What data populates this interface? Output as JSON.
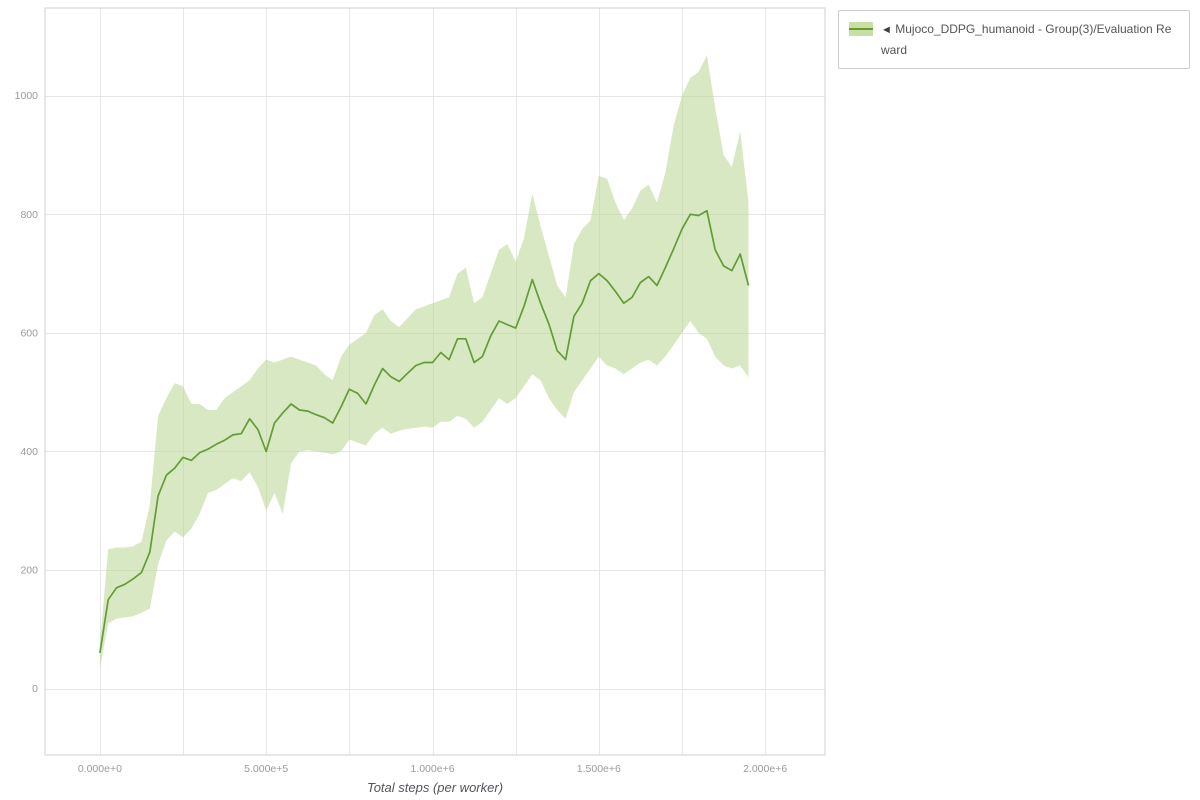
{
  "colors": {
    "line": "#639c36",
    "band": "#b8d690",
    "band_legend": "#c9dfa4",
    "grid": "#e7e7e7",
    "frame": "#d2d2d2",
    "tick_label": "#9b9b9b",
    "axis_label": "#54555e"
  },
  "legend": {
    "collapse_icon": "◄",
    "label": "Mujoco_DDPG_humanoid - Group(3)/Evaluation Reward"
  },
  "chart_data": {
    "type": "line",
    "title": "",
    "xlabel": "Total steps (per worker)",
    "ylabel": "",
    "xlim": [
      -165000,
      2180000
    ],
    "ylim": [
      -112,
      1148
    ],
    "grid": true,
    "legend_position": "top-right-outside",
    "x_minor_grid_step": 250000,
    "x_grid_max": 2000000,
    "x_ticks": [
      {
        "value": 0,
        "label": "0.000e+0"
      },
      {
        "value": 500000,
        "label": "5.000e+5"
      },
      {
        "value": 1000000,
        "label": "1.000e+6"
      },
      {
        "value": 1500000,
        "label": "1.500e+6"
      },
      {
        "value": 2000000,
        "label": "2.000e+6"
      }
    ],
    "y_ticks": [
      {
        "value": 0,
        "label": "0"
      },
      {
        "value": 200,
        "label": "200"
      },
      {
        "value": 400,
        "label": "400"
      },
      {
        "value": 600,
        "label": "600"
      },
      {
        "value": 800,
        "label": "800"
      },
      {
        "value": 1000,
        "label": "1000"
      }
    ],
    "series": [
      {
        "name": "Mujoco_DDPG_humanoid - Group(3)/Evaluation Reward",
        "band_opacity": 0.55,
        "x": [
          0,
          25000,
          50000,
          75000,
          100000,
          125000,
          150000,
          175000,
          200000,
          225000,
          250000,
          275000,
          300000,
          325000,
          350000,
          375000,
          400000,
          425000,
          450000,
          475000,
          500000,
          525000,
          550000,
          575000,
          600000,
          625000,
          650000,
          675000,
          700000,
          725000,
          750000,
          775000,
          800000,
          825000,
          850000,
          875000,
          900000,
          925000,
          950000,
          975000,
          1000000,
          1025000,
          1050000,
          1075000,
          1100000,
          1125000,
          1150000,
          1175000,
          1200000,
          1225000,
          1250000,
          1275000,
          1300000,
          1325000,
          1350000,
          1375000,
          1400000,
          1425000,
          1450000,
          1475000,
          1500000,
          1525000,
          1550000,
          1575000,
          1600000,
          1625000,
          1650000,
          1675000,
          1700000,
          1725000,
          1750000,
          1775000,
          1800000,
          1825000,
          1850000,
          1875000,
          1900000,
          1925000,
          1950000
        ],
        "mean": [
          60,
          150,
          170,
          176,
          185,
          196,
          230,
          325,
          360,
          372,
          390,
          385,
          398,
          404,
          412,
          419,
          428,
          430,
          455,
          437,
          400,
          448,
          465,
          480,
          470,
          468,
          462,
          457,
          448,
          475,
          505,
          498,
          480,
          512,
          540,
          526,
          518,
          532,
          545,
          550,
          550,
          567,
          555,
          590,
          590,
          550,
          560,
          595,
          620,
          614,
          608,
          645,
          690,
          650,
          615,
          570,
          555,
          628,
          650,
          688,
          700,
          688,
          670,
          650,
          660,
          685,
          695,
          680,
          710,
          742,
          775,
          800,
          798,
          806,
          740,
          713,
          705,
          733,
          680
        ],
        "low": [
          35,
          110,
          118,
          120,
          122,
          128,
          135,
          210,
          250,
          265,
          255,
          270,
          295,
          330,
          335,
          345,
          355,
          350,
          365,
          340,
          300,
          330,
          295,
          380,
          400,
          402,
          400,
          398,
          395,
          400,
          420,
          415,
          410,
          430,
          440,
          430,
          435,
          438,
          440,
          442,
          440,
          450,
          450,
          460,
          455,
          440,
          450,
          470,
          490,
          480,
          490,
          510,
          530,
          520,
          490,
          470,
          455,
          500,
          520,
          540,
          560,
          545,
          540,
          530,
          540,
          550,
          555,
          545,
          560,
          580,
          600,
          620,
          600,
          590,
          560,
          545,
          540,
          545,
          525
        ],
        "high": [
          75,
          235,
          238,
          238,
          240,
          248,
          310,
          460,
          490,
          515,
          510,
          480,
          480,
          470,
          470,
          490,
          500,
          510,
          520,
          540,
          555,
          550,
          555,
          560,
          555,
          550,
          545,
          530,
          520,
          560,
          580,
          590,
          600,
          630,
          640,
          620,
          610,
          625,
          640,
          645,
          650,
          655,
          660,
          700,
          710,
          650,
          660,
          700,
          740,
          750,
          720,
          760,
          835,
          780,
          730,
          680,
          660,
          750,
          775,
          790,
          865,
          860,
          820,
          790,
          810,
          840,
          850,
          820,
          870,
          950,
          1000,
          1030,
          1040,
          1068,
          980,
          900,
          880,
          940,
          820
        ]
      }
    ]
  }
}
